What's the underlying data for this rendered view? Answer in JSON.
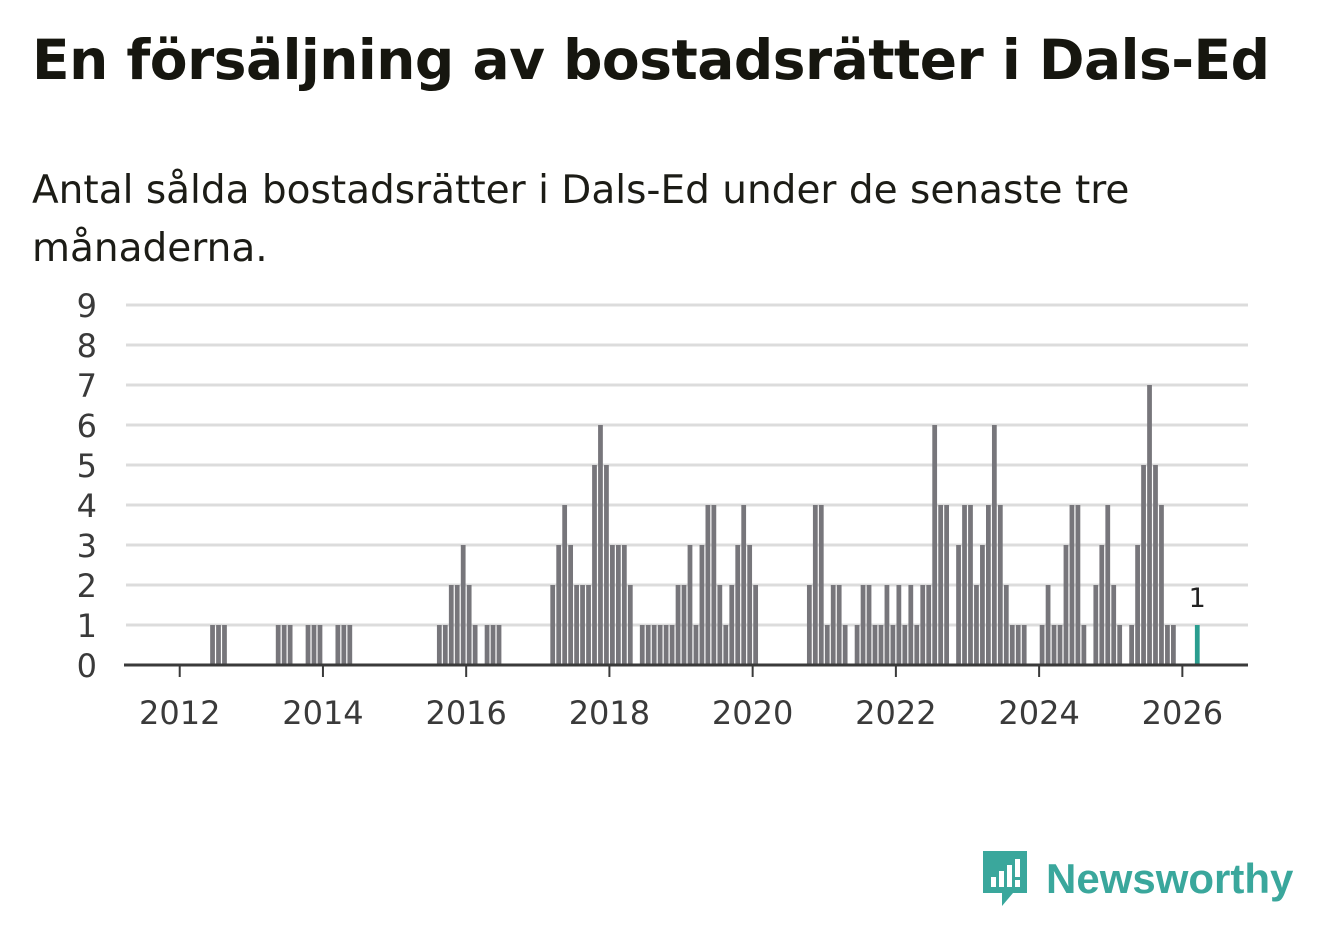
{
  "header": {
    "title": "En försäljning av bostadsrätter i Dals-Ed",
    "subtitle": "Antal sålda bostadsrätter i Dals-Ed under de senaste tre månaderna."
  },
  "brand": {
    "name": "Newsworthy",
    "color": "#3aa79c"
  },
  "chart_data": {
    "type": "bar",
    "title": "En försäljning av bostadsrätter i Dals-Ed",
    "subtitle": "Antal sålda bostadsrätter i Dals-Ed under de senaste tre månaderna.",
    "xlabel": "",
    "ylabel": "",
    "ylim": [
      0,
      9
    ],
    "y_ticks": [
      "0",
      "1",
      "2",
      "3",
      "4",
      "5",
      "6",
      "7",
      "8",
      "9"
    ],
    "x_ticks": [
      "2012",
      "2014",
      "2016",
      "2018",
      "2020",
      "2022",
      "2024",
      "2026"
    ],
    "x_range": [
      "2011-04",
      "2026-11"
    ],
    "grid": true,
    "bar_color": "#77767b",
    "highlight_color": "#2a9d8f",
    "highlight_label": "1",
    "series": [
      {
        "name": "Antal sålda bostadsrätter",
        "points": [
          [
            "2012-06",
            1
          ],
          [
            "2012-07",
            1
          ],
          [
            "2012-08",
            1
          ],
          [
            "2013-05",
            1
          ],
          [
            "2013-06",
            1
          ],
          [
            "2013-07",
            1
          ],
          [
            "2013-10",
            1
          ],
          [
            "2013-11",
            1
          ],
          [
            "2013-12",
            1
          ],
          [
            "2014-03",
            1
          ],
          [
            "2014-04",
            1
          ],
          [
            "2014-05",
            1
          ],
          [
            "2015-08",
            1
          ],
          [
            "2015-09",
            1
          ],
          [
            "2015-10",
            2
          ],
          [
            "2015-11",
            2
          ],
          [
            "2015-12",
            3
          ],
          [
            "2016-01",
            2
          ],
          [
            "2016-02",
            1
          ],
          [
            "2016-04",
            1
          ],
          [
            "2016-05",
            1
          ],
          [
            "2016-06",
            1
          ],
          [
            "2017-03",
            2
          ],
          [
            "2017-04",
            3
          ],
          [
            "2017-05",
            4
          ],
          [
            "2017-06",
            3
          ],
          [
            "2017-07",
            2
          ],
          [
            "2017-08",
            2
          ],
          [
            "2017-09",
            2
          ],
          [
            "2017-10",
            5
          ],
          [
            "2017-11",
            6
          ],
          [
            "2017-12",
            5
          ],
          [
            "2018-01",
            3
          ],
          [
            "2018-02",
            3
          ],
          [
            "2018-03",
            3
          ],
          [
            "2018-04",
            2
          ],
          [
            "2018-06",
            1
          ],
          [
            "2018-07",
            1
          ],
          [
            "2018-08",
            1
          ],
          [
            "2018-09",
            1
          ],
          [
            "2018-10",
            1
          ],
          [
            "2018-11",
            1
          ],
          [
            "2018-12",
            2
          ],
          [
            "2019-01",
            2
          ],
          [
            "2019-02",
            3
          ],
          [
            "2019-03",
            1
          ],
          [
            "2019-04",
            3
          ],
          [
            "2019-05",
            4
          ],
          [
            "2019-06",
            4
          ],
          [
            "2019-07",
            2
          ],
          [
            "2019-08",
            1
          ],
          [
            "2019-09",
            2
          ],
          [
            "2019-10",
            3
          ],
          [
            "2019-11",
            4
          ],
          [
            "2019-12",
            3
          ],
          [
            "2020-01",
            2
          ],
          [
            "2020-10",
            2
          ],
          [
            "2020-11",
            4
          ],
          [
            "2020-12",
            4
          ],
          [
            "2021-01",
            1
          ],
          [
            "2021-02",
            2
          ],
          [
            "2021-03",
            2
          ],
          [
            "2021-04",
            1
          ],
          [
            "2021-06",
            1
          ],
          [
            "2021-07",
            2
          ],
          [
            "2021-08",
            2
          ],
          [
            "2021-09",
            1
          ],
          [
            "2021-10",
            1
          ],
          [
            "2021-11",
            2
          ],
          [
            "2021-12",
            1
          ],
          [
            "2022-01",
            2
          ],
          [
            "2022-02",
            1
          ],
          [
            "2022-03",
            2
          ],
          [
            "2022-04",
            1
          ],
          [
            "2022-05",
            2
          ],
          [
            "2022-06",
            2
          ],
          [
            "2022-07",
            6
          ],
          [
            "2022-08",
            4
          ],
          [
            "2022-09",
            4
          ],
          [
            "2022-11",
            3
          ],
          [
            "2022-12",
            4
          ],
          [
            "2023-01",
            4
          ],
          [
            "2023-02",
            2
          ],
          [
            "2023-03",
            3
          ],
          [
            "2023-04",
            4
          ],
          [
            "2023-05",
            6
          ],
          [
            "2023-06",
            4
          ],
          [
            "2023-07",
            2
          ],
          [
            "2023-08",
            1
          ],
          [
            "2023-09",
            1
          ],
          [
            "2023-10",
            1
          ],
          [
            "2024-01",
            1
          ],
          [
            "2024-02",
            2
          ],
          [
            "2024-03",
            1
          ],
          [
            "2024-04",
            1
          ],
          [
            "2024-05",
            3
          ],
          [
            "2024-06",
            4
          ],
          [
            "2024-07",
            4
          ],
          [
            "2024-08",
            1
          ],
          [
            "2024-10",
            2
          ],
          [
            "2024-11",
            3
          ],
          [
            "2024-12",
            4
          ],
          [
            "2025-01",
            2
          ],
          [
            "2025-02",
            1
          ],
          [
            "2025-04",
            1
          ],
          [
            "2025-05",
            3
          ],
          [
            "2025-06",
            5
          ],
          [
            "2025-07",
            7
          ],
          [
            "2025-08",
            5
          ],
          [
            "2025-09",
            4
          ],
          [
            "2025-10",
            1
          ],
          [
            "2025-11",
            1
          ],
          [
            "2026-03",
            1
          ]
        ]
      }
    ]
  }
}
